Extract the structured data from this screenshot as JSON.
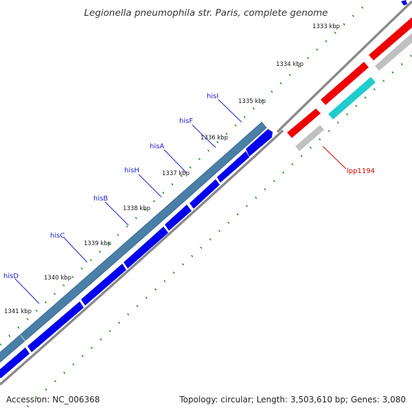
{
  "title": "Legionella pneumophila str. Paris, complete genome",
  "footer": {
    "accession": "Accession: NC_006368",
    "summary": "Topology: circular; Length: 3,503,610 bp; Genes: 3,080"
  },
  "ticks": [
    "1333 kbp",
    "1334 kbp",
    "1335 kbp",
    "1336 kbp",
    "1337 kbp",
    "1338 kbp",
    "1339 kbp",
    "1340 kbp",
    "1341 kbp"
  ],
  "genes": [
    {
      "name": "hisI",
      "color": "#1a1acc"
    },
    {
      "name": "hisF",
      "color": "#1a1acc"
    },
    {
      "name": "hisA",
      "color": "#1a1acc"
    },
    {
      "name": "hisH",
      "color": "#1a1acc"
    },
    {
      "name": "hisB",
      "color": "#1a1acc"
    },
    {
      "name": "hisC",
      "color": "#1a1acc"
    },
    {
      "name": "hisD",
      "color": "#1a1acc"
    },
    {
      "name": "lpp1194",
      "color": "#cc0000"
    }
  ],
  "colors": {
    "backbone": "#8a8a8a",
    "operon": "#4a7fa8",
    "cds": "#0000ee",
    "rna": "#ee0000",
    "teal": "#22cccc",
    "grey_feature": "#c0c0c0",
    "ticks": "#1a8a1a",
    "gene_label": "#1a1acc",
    "other_label": "#cc0000"
  }
}
